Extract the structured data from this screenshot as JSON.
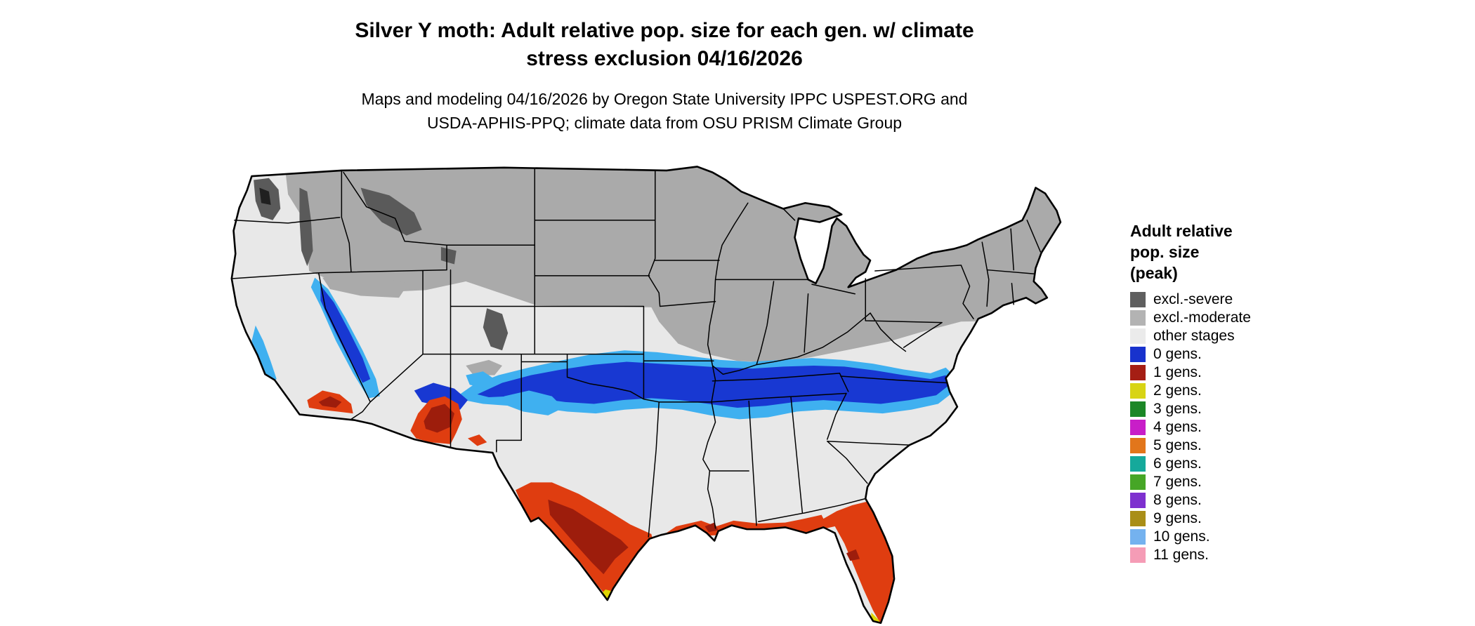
{
  "header": {
    "title_line1": "Silver Y moth: Adult relative pop. size for each gen. w/ climate",
    "title_line2": "stress exclusion 04/16/2026",
    "subtitle_line1": "Maps and modeling 04/16/2026 by Oregon State University IPPC USPEST.ORG and",
    "subtitle_line2": "USDA-APHIS-PPQ; climate data from OSU PRISM Climate Group"
  },
  "legend": {
    "title_lines": [
      "Adult relative",
      "pop. size",
      "(peak)"
    ],
    "items": [
      {
        "label": "excl.-severe",
        "color": "#5f5f5f"
      },
      {
        "label": "excl.-moderate",
        "color": "#b3b3b3"
      },
      {
        "label": "other stages",
        "color": "#ebebeb"
      },
      {
        "label": "0 gens.",
        "color": "#1832cd"
      },
      {
        "label": "1 gens.",
        "color": "#a51e14"
      },
      {
        "label": "2 gens.",
        "color": "#d8d414"
      },
      {
        "label": "3 gens.",
        "color": "#1c8727"
      },
      {
        "label": "4 gens.",
        "color": "#c81ec8"
      },
      {
        "label": "5 gens.",
        "color": "#e2761b"
      },
      {
        "label": "6 gens.",
        "color": "#15a99b"
      },
      {
        "label": "7 gens.",
        "color": "#46a626"
      },
      {
        "label": "8 gens.",
        "color": "#7e30cf"
      },
      {
        "label": "9 gens.",
        "color": "#a98e18"
      },
      {
        "label": "10 gens.",
        "color": "#74b2ef"
      },
      {
        "label": "11 gens.",
        "color": "#f59cb6"
      }
    ]
  },
  "map": {
    "region": "Continental United States",
    "date_shown": "04/16/2026",
    "colors": {
      "background": "#ffffff",
      "other_stages": "#e8e8e8",
      "excl_moderate": "#aaaaaa",
      "excl_severe": "#5a5a5a",
      "excl_severe_dark": "#202020",
      "gen0_blue": "#1838d2",
      "gen0_light_blue": "#3fb0f0",
      "gen1_red": "#df3d10",
      "gen1_dark_red": "#9d1d0c",
      "gen2_yellow": "#ded504",
      "border": "#000000"
    }
  }
}
